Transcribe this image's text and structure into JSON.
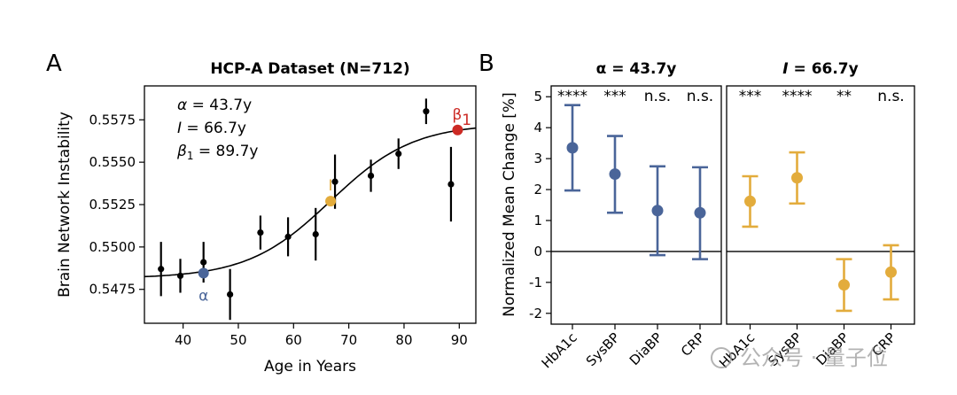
{
  "watermark": "公众号 · 量子位",
  "colors": {
    "blue": "#4a6599",
    "orange": "#e3ac3c",
    "red": "#cc2a24",
    "black": "#000000"
  },
  "chart_data": [
    {
      "panel": "A",
      "type": "line+errorbar",
      "title": "HCP-A Dataset (N=712)",
      "xlabel": "Age in Years",
      "ylabel": "Brain Network Instability",
      "xlim": [
        33,
        93
      ],
      "ylim": [
        0.5455,
        0.5595
      ],
      "xticks": [
        40,
        50,
        60,
        70,
        80,
        90
      ],
      "yticks": [
        0.5475,
        0.55,
        0.5525,
        0.555,
        0.5575
      ],
      "ytick_labels": [
        "0.5475",
        "0.5500",
        "0.5525",
        "0.5550",
        "0.5575"
      ],
      "points": [
        {
          "x": 36.0,
          "y": 0.5487,
          "err": 0.0016
        },
        {
          "x": 39.5,
          "y": 0.5483,
          "err": 0.001
        },
        {
          "x": 43.7,
          "y": 0.5491,
          "err": 0.0012
        },
        {
          "x": 48.5,
          "y": 0.5472,
          "err": 0.0015
        },
        {
          "x": 54.0,
          "y": 0.55085,
          "err": 0.001
        },
        {
          "x": 59.0,
          "y": 0.5506,
          "err": 0.00115
        },
        {
          "x": 64.0,
          "y": 0.55075,
          "err": 0.00155
        },
        {
          "x": 67.5,
          "y": 0.55385,
          "err": 0.0016
        },
        {
          "x": 74.0,
          "y": 0.5542,
          "err": 0.00095
        },
        {
          "x": 79.0,
          "y": 0.5555,
          "err": 0.0009
        },
        {
          "x": 84.0,
          "y": 0.558,
          "err": 0.00075
        },
        {
          "x": 88.5,
          "y": 0.5537,
          "err": 0.0022
        }
      ],
      "fit": {
        "low": 0.54815,
        "high": 0.55728,
        "center": 66.7,
        "scale": 7.5
      },
      "markers": [
        {
          "name": "alpha",
          "x": 43.7,
          "y": 0.54846,
          "label": "α",
          "color": "#4a6599"
        },
        {
          "name": "inflection",
          "x": 66.7,
          "y": 0.5527,
          "label": "I",
          "color": "#e3ac3c"
        },
        {
          "name": "beta1",
          "x": 89.7,
          "y": 0.5569,
          "label": "β",
          "sub": "1",
          "color": "#cc2a24"
        }
      ],
      "annotations": [
        {
          "sym": "α",
          "text": " = 43.7y"
        },
        {
          "sym": "I",
          "text": " = 66.7y"
        },
        {
          "sym": "β",
          "sub": "1",
          "text": " = 89.7y"
        }
      ]
    },
    {
      "panel": "B",
      "type": "errorbar",
      "ylabel": "Normalized Mean Change [%]",
      "ylim": [
        -2.35,
        5.35
      ],
      "yticks": [
        -2,
        -1,
        0,
        1,
        2,
        3,
        4,
        5
      ],
      "categories": [
        "HbA1c",
        "SysBP",
        "DiaBP",
        "CRP"
      ],
      "subplots": [
        {
          "title_sym": "α",
          "title_rest": " = 43.7y",
          "color": "#4a6599",
          "values": [
            3.35,
            2.5,
            1.32,
            1.25
          ],
          "lower": [
            1.97,
            1.25,
            -0.12,
            -0.25
          ],
          "upper": [
            4.73,
            3.73,
            2.75,
            2.72
          ],
          "significance": [
            "****",
            "***",
            "n.s.",
            "n.s."
          ]
        },
        {
          "title_sym": "I",
          "title_rest": " = 66.7y",
          "color": "#e3ac3c",
          "values": [
            1.62,
            2.38,
            -1.08,
            -0.67
          ],
          "lower": [
            0.8,
            1.55,
            -1.92,
            -1.55
          ],
          "upper": [
            2.43,
            3.2,
            -0.25,
            0.2
          ],
          "significance": [
            "***",
            "****",
            "**",
            "n.s."
          ]
        }
      ]
    }
  ]
}
